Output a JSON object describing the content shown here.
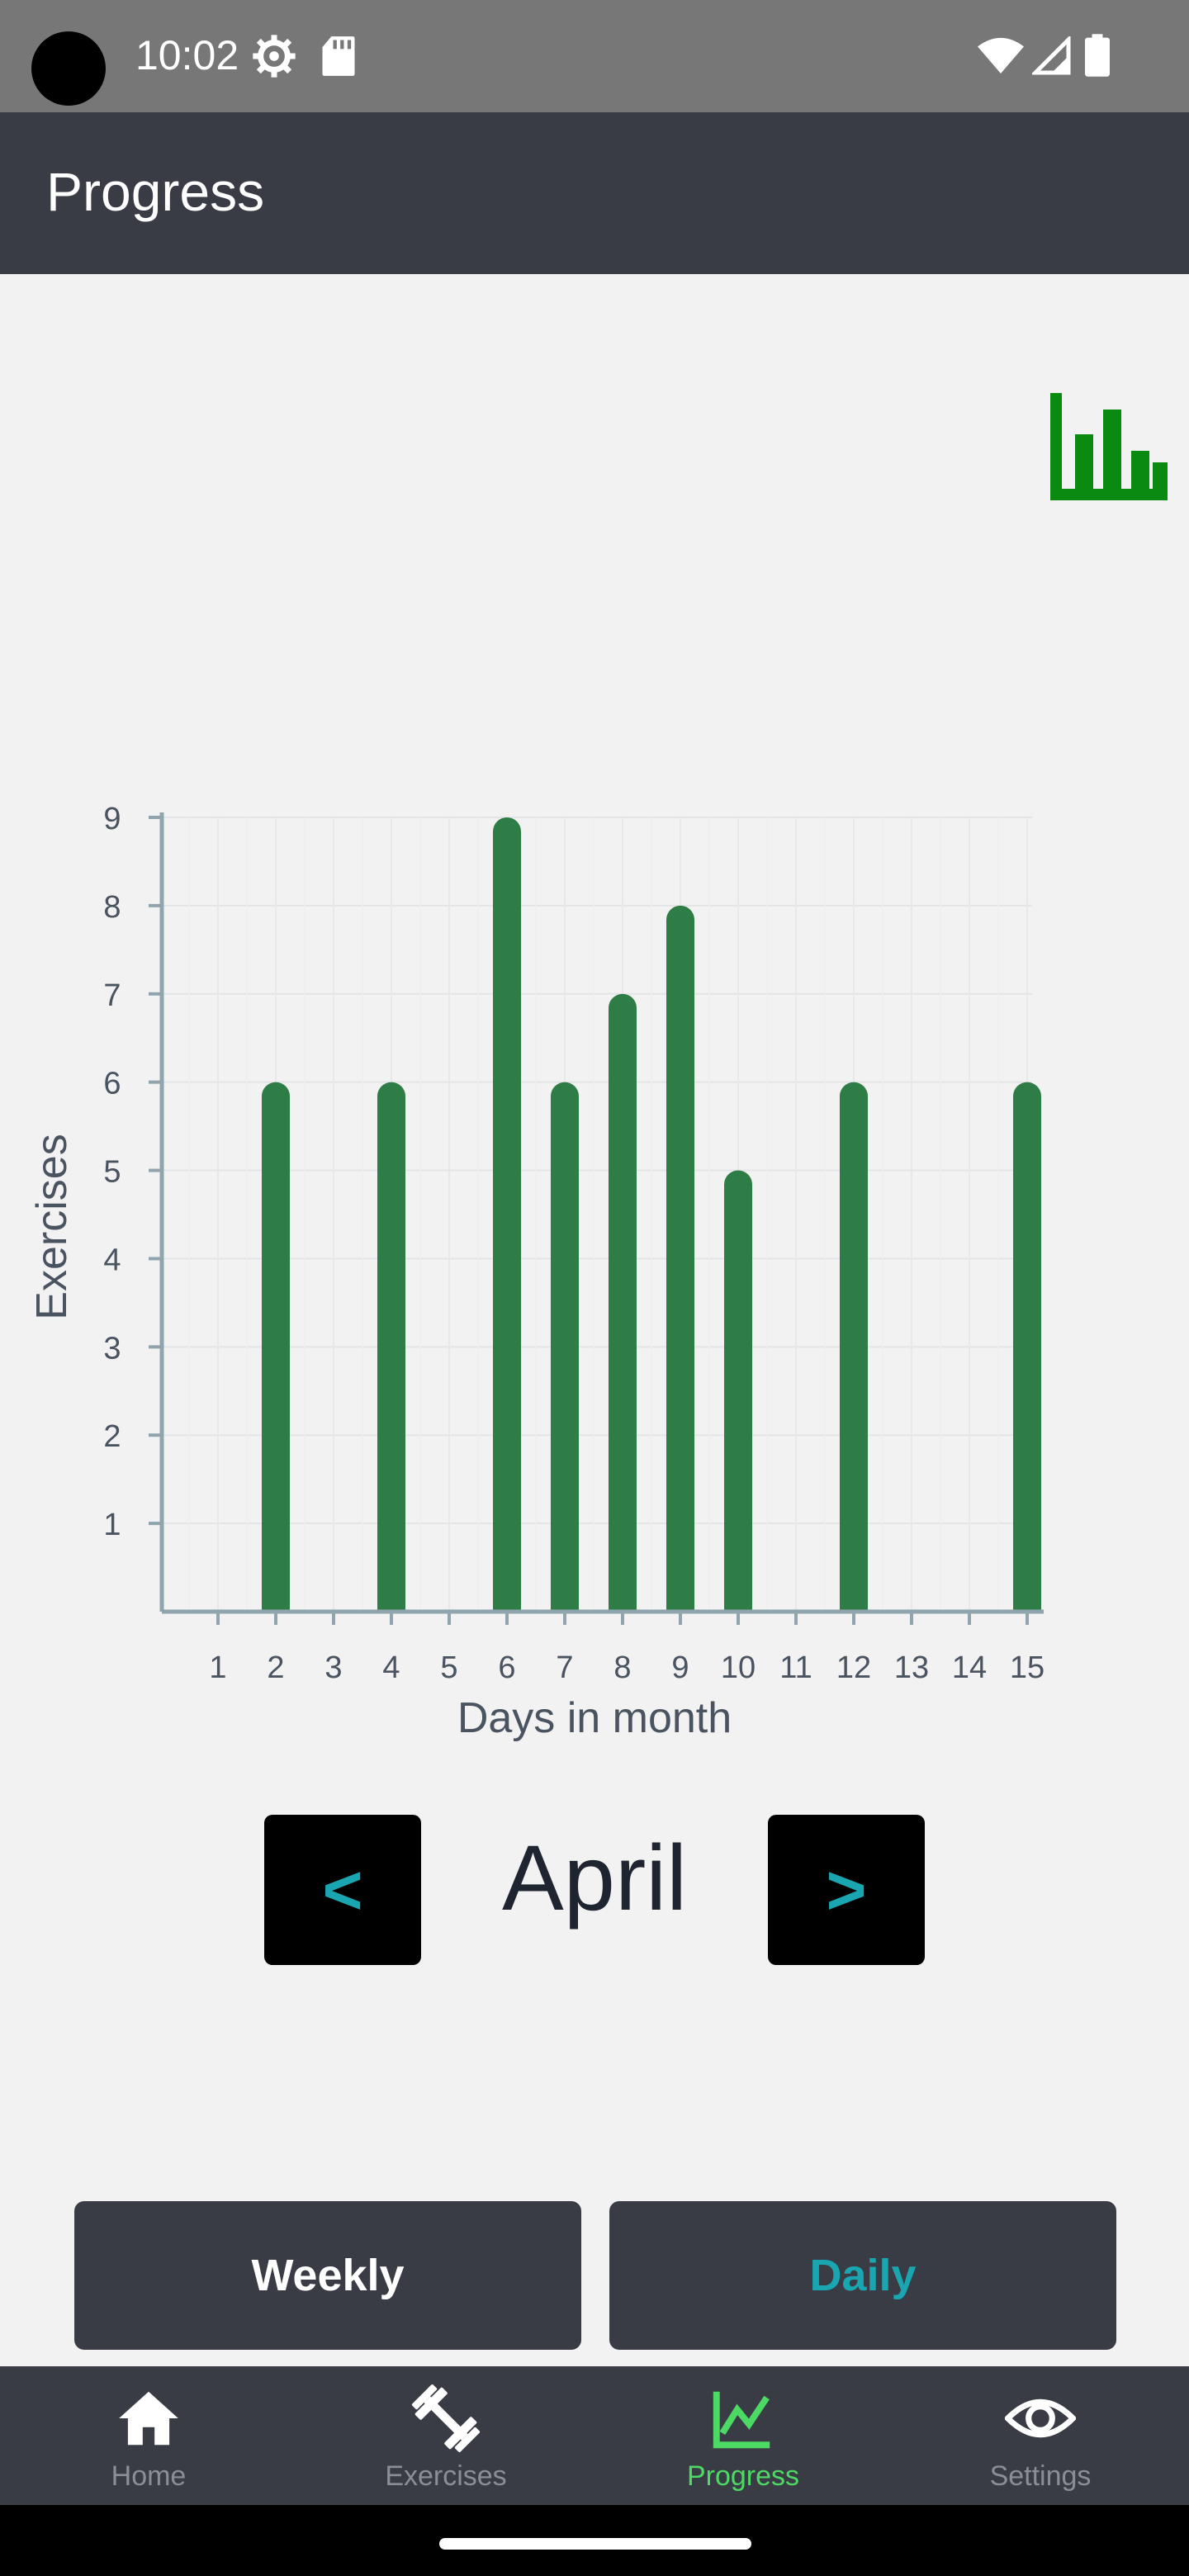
{
  "status_bar": {
    "time": "10:02",
    "icons": [
      "gear-icon",
      "sd-card-icon",
      "wifi-icon",
      "signal-icon",
      "battery-icon"
    ]
  },
  "app_bar": {
    "title": "Progress"
  },
  "chart_toggle_icon": "bar-chart-icon",
  "chart_data": {
    "type": "bar",
    "xlabel": "Days in month",
    "ylabel": "Exercises",
    "categories": [
      "1",
      "2",
      "3",
      "4",
      "5",
      "6",
      "7",
      "8",
      "9",
      "10",
      "11",
      "12",
      "13",
      "14",
      "15"
    ],
    "values": [
      0,
      6,
      0,
      6,
      0,
      9,
      6,
      7,
      8,
      5,
      0,
      6,
      0,
      0,
      6
    ],
    "yticks": [
      "1",
      "2",
      "3",
      "4",
      "5",
      "6",
      "7",
      "8",
      "9"
    ],
    "ylim": [
      0,
      9
    ],
    "grid": true,
    "bar_color": "#2e7d46"
  },
  "month_nav": {
    "prev_label": "<",
    "month": "April",
    "next_label": ">"
  },
  "mode_buttons": {
    "weekly_label": "Weekly",
    "daily_label": "Daily",
    "active": "Daily"
  },
  "bottom_nav": {
    "items": [
      {
        "label": "Home",
        "icon": "home-icon"
      },
      {
        "label": "Exercises",
        "icon": "dumbbell-icon"
      },
      {
        "label": "Progress",
        "icon": "line-chart-icon"
      },
      {
        "label": "Settings",
        "icon": "eye-icon"
      }
    ],
    "active": "Progress",
    "active_color": "#4cd964",
    "inactive_color": "#8b8e95"
  },
  "colors": {
    "app_bar": "#393c44",
    "accent_teal": "#1aa6b0",
    "bar_green": "#2e7d46",
    "toggle_green": "#0a8a10"
  }
}
